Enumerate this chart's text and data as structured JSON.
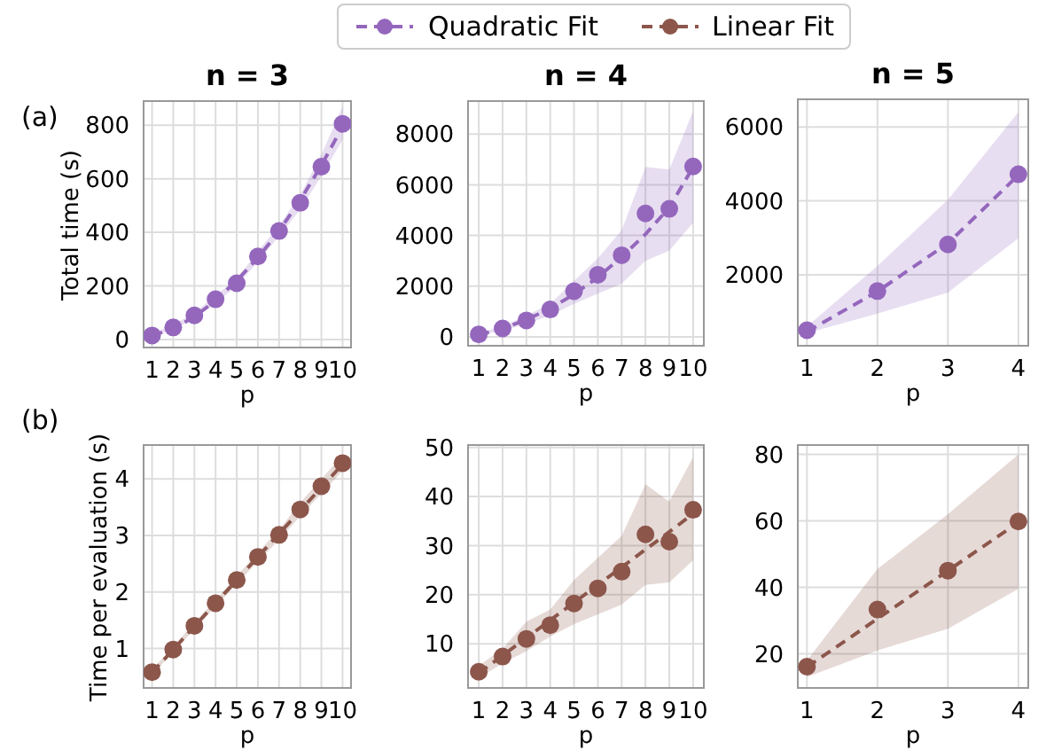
{
  "chart_data": [
    {
      "type": "line",
      "title": "n = 3",
      "ylabel": "Total time (s)",
      "xlabel": "p",
      "annotations": [
        "(a)"
      ],
      "legend": "top",
      "grid": true,
      "line_style": "dashed",
      "x": [
        1,
        2,
        3,
        4,
        5,
        6,
        7,
        8,
        9,
        10
      ],
      "xlim": [
        0.6,
        10.4
      ],
      "xticks": [
        1,
        2,
        3,
        4,
        5,
        6,
        7,
        8,
        9,
        10
      ],
      "ylim": [
        -30,
        890
      ],
      "yticks": [
        0,
        200,
        400,
        600,
        800
      ],
      "series": [
        {
          "type": "scatter",
          "marker": "circle",
          "color": "#9467bd",
          "values": [
            15,
            45,
            90,
            150,
            210,
            310,
            405,
            510,
            645,
            805
          ],
          "lower": [
            10,
            35,
            78,
            135,
            200,
            290,
            385,
            485,
            610,
            745
          ],
          "upper": [
            22,
            55,
            100,
            165,
            225,
            330,
            425,
            540,
            690,
            870
          ]
        },
        {
          "name": "Quadratic Fit",
          "color": "#9467bd",
          "values": [
            15,
            40,
            85,
            145,
            220,
            305,
            405,
            520,
            650,
            795
          ]
        }
      ]
    },
    {
      "type": "line",
      "title": "n = 4",
      "xlabel": "p",
      "grid": true,
      "line_style": "dashed",
      "x": [
        1,
        2,
        3,
        4,
        5,
        6,
        7,
        8,
        9,
        10
      ],
      "xlim": [
        0.55,
        10.45
      ],
      "xticks": [
        1,
        2,
        3,
        4,
        5,
        6,
        7,
        8,
        9,
        10
      ],
      "ylim": [
        -350,
        9300
      ],
      "yticks": [
        0,
        2000,
        4000,
        6000,
        8000
      ],
      "series": [
        {
          "type": "scatter",
          "marker": "circle",
          "color": "#9467bd",
          "values": [
            100,
            330,
            650,
            1080,
            1800,
            2450,
            3220,
            4870,
            5050,
            6720
          ],
          "lower": [
            60,
            250,
            500,
            850,
            1300,
            1700,
            2100,
            3000,
            3400,
            4500
          ],
          "upper": [
            150,
            420,
            850,
            1300,
            2200,
            3100,
            4200,
            6700,
            6600,
            8900
          ]
        },
        {
          "color": "#9467bd",
          "values": [
            80,
            330,
            680,
            1120,
            1680,
            2350,
            3150,
            4050,
            5100,
            6700
          ]
        }
      ]
    },
    {
      "type": "line",
      "title": "n = 5",
      "xlabel": "p",
      "grid": true,
      "line_style": "dashed",
      "x": [
        1,
        2,
        3,
        4
      ],
      "xlim": [
        0.87,
        4.14
      ],
      "xticks": [
        1,
        2,
        3,
        4
      ],
      "ylim": [
        80,
        6750
      ],
      "yticks": [
        2000,
        4000,
        6000
      ],
      "series": [
        {
          "type": "scatter",
          "marker": "circle",
          "color": "#9467bd",
          "values": [
            500,
            1560,
            2820,
            4720
          ],
          "lower": [
            420,
            950,
            1520,
            2990
          ],
          "upper": [
            600,
            2240,
            4030,
            6400
          ]
        },
        {
          "color": "#9467bd",
          "values": [
            460,
            1550,
            2850,
            4700
          ]
        }
      ]
    },
    {
      "type": "line",
      "ylabel": "Time per evaluation (s)",
      "xlabel": "p",
      "annotations": [
        "(b)"
      ],
      "legend": "top",
      "grid": true,
      "line_style": "dashed",
      "x": [
        1,
        2,
        3,
        4,
        5,
        6,
        7,
        8,
        9,
        10
      ],
      "xlim": [
        0.6,
        10.4
      ],
      "xticks": [
        1,
        2,
        3,
        4,
        5,
        6,
        7,
        8,
        9,
        10
      ],
      "ylim": [
        0.3,
        4.6
      ],
      "yticks": [
        1,
        2,
        3,
        4
      ],
      "series": [
        {
          "type": "scatter",
          "marker": "circle",
          "color": "#8c564b",
          "values": [
            0.58,
            0.98,
            1.4,
            1.8,
            2.21,
            2.62,
            3.01,
            3.46,
            3.87,
            4.28
          ],
          "lower": [
            0.53,
            0.93,
            1.34,
            1.74,
            2.14,
            2.54,
            2.92,
            3.34,
            3.74,
            4.14
          ],
          "upper": [
            0.63,
            1.03,
            1.46,
            1.86,
            2.28,
            2.7,
            3.1,
            3.58,
            4.0,
            4.42
          ]
        },
        {
          "name": "Linear Fit",
          "color": "#8c564b",
          "values": [
            0.57,
            0.98,
            1.39,
            1.8,
            2.21,
            2.62,
            3.03,
            3.44,
            3.85,
            4.26
          ]
        }
      ]
    },
    {
      "type": "line",
      "xlabel": "p",
      "grid": true,
      "line_style": "dashed",
      "x": [
        1,
        2,
        3,
        4,
        5,
        6,
        7,
        8,
        9,
        10
      ],
      "xlim": [
        0.55,
        10.45
      ],
      "xticks": [
        1,
        2,
        3,
        4,
        5,
        6,
        7,
        8,
        9,
        10
      ],
      "ylim": [
        1,
        50.5
      ],
      "yticks": [
        10,
        20,
        30,
        40,
        50
      ],
      "series": [
        {
          "type": "scatter",
          "marker": "circle",
          "color": "#8c564b",
          "values": [
            4.3,
            7.4,
            11,
            13.8,
            18.2,
            21.3,
            24.7,
            32.3,
            30.8,
            37.3
          ],
          "lower": [
            3,
            6,
            8.5,
            11.5,
            14,
            16,
            18,
            22,
            22.5,
            27
          ],
          "upper": [
            5.5,
            9,
            14.5,
            17,
            23,
            27.5,
            32,
            42.5,
            39,
            48
          ]
        },
        {
          "color": "#8c564b",
          "values": [
            4,
            7.6,
            11.2,
            14.8,
            18.4,
            22,
            25.6,
            29.2,
            32.8,
            36.5
          ]
        }
      ]
    },
    {
      "type": "line",
      "xlabel": "p",
      "grid": true,
      "line_style": "dashed",
      "x": [
        1,
        2,
        3,
        4
      ],
      "xlim": [
        0.87,
        4.14
      ],
      "xticks": [
        1,
        2,
        3,
        4
      ],
      "ylim": [
        9.7,
        82.8
      ],
      "yticks": [
        20,
        40,
        60,
        80
      ],
      "series": [
        {
          "type": "scatter",
          "marker": "circle",
          "color": "#8c564b",
          "values": [
            16.1,
            33.3,
            45,
            59.8
          ],
          "lower": [
            13,
            21,
            27.5,
            39.5
          ],
          "upper": [
            18,
            45.5,
            62,
            80
          ]
        },
        {
          "color": "#8c564b",
          "values": [
            16,
            30.5,
            45,
            59.5
          ]
        }
      ]
    }
  ]
}
